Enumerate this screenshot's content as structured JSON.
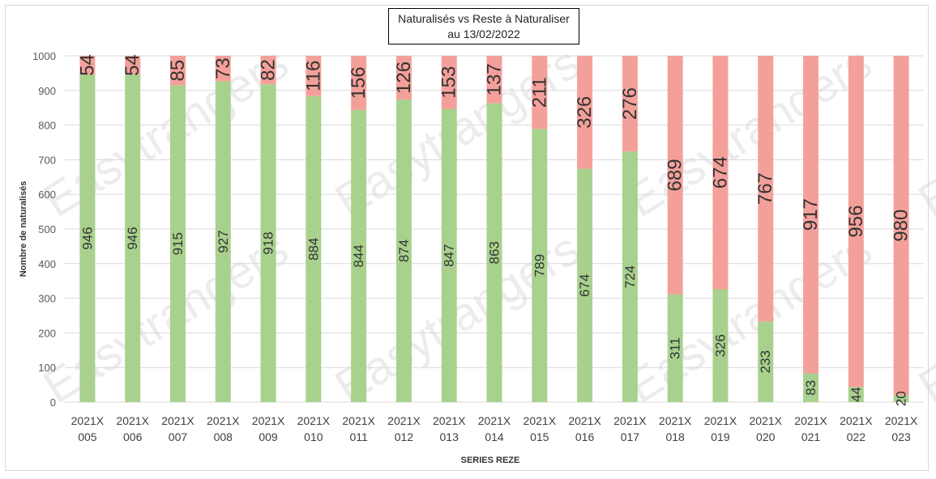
{
  "chart_data": {
    "type": "bar",
    "stacked": true,
    "title": "Naturalisés vs Reste à Naturaliser",
    "subtitle": "au 13/02/2022",
    "xlabel": "SERIES REZE",
    "ylabel": "Nombre de naturalisés",
    "ylim": [
      0,
      1000
    ],
    "yticks": [
      0,
      100,
      200,
      300,
      400,
      500,
      600,
      700,
      800,
      900,
      1000
    ],
    "grid": true,
    "categories": [
      [
        "2021X",
        "005"
      ],
      [
        "2021X",
        "006"
      ],
      [
        "2021X",
        "007"
      ],
      [
        "2021X",
        "008"
      ],
      [
        "2021X",
        "009"
      ],
      [
        "2021X",
        "010"
      ],
      [
        "2021X",
        "011"
      ],
      [
        "2021X",
        "012"
      ],
      [
        "2021X",
        "013"
      ],
      [
        "2021X",
        "014"
      ],
      [
        "2021X",
        "015"
      ],
      [
        "2021X",
        "016"
      ],
      [
        "2021X",
        "017"
      ],
      [
        "2021X",
        "018"
      ],
      [
        "2021X",
        "019"
      ],
      [
        "2021X",
        "020"
      ],
      [
        "2021X",
        "021"
      ],
      [
        "2021X",
        "022"
      ],
      [
        "2021X",
        "023"
      ]
    ],
    "series": [
      {
        "color": "#a9d18e",
        "values": [
          946,
          946,
          915,
          927,
          918,
          884,
          844,
          874,
          847,
          863,
          789,
          674,
          724,
          311,
          326,
          233,
          83,
          44,
          20
        ]
      },
      {
        "color": "#f4a09a",
        "values": [
          54,
          54,
          85,
          73,
          82,
          116,
          156,
          126,
          153,
          137,
          211,
          326,
          276,
          689,
          674,
          767,
          917,
          956,
          980
        ]
      }
    ]
  },
  "watermark": "Easytrangers"
}
